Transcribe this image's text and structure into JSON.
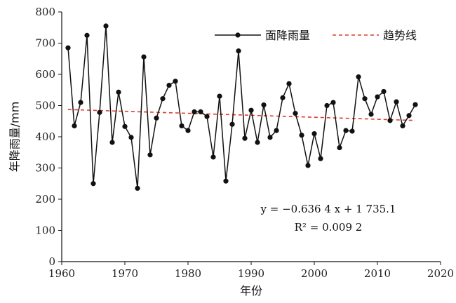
{
  "chart_data": {
    "type": "line",
    "xlabel": "年份",
    "ylabel": "年降雨量/mm",
    "xlim": [
      1960,
      2020
    ],
    "ylim": [
      0,
      800
    ],
    "xticks": [
      1960,
      1970,
      1980,
      1990,
      2000,
      2010,
      2020
    ],
    "yticks": [
      0,
      100,
      200,
      300,
      400,
      500,
      600,
      700,
      800
    ],
    "legend_position": "top-right",
    "grid": false,
    "series": [
      {
        "name": "面降雨量",
        "color": "#111111",
        "marker": "circle",
        "x": [
          1961,
          1962,
          1963,
          1964,
          1965,
          1966,
          1967,
          1968,
          1969,
          1970,
          1971,
          1972,
          1973,
          1974,
          1975,
          1976,
          1977,
          1978,
          1979,
          1980,
          1981,
          1982,
          1983,
          1984,
          1985,
          1986,
          1987,
          1988,
          1989,
          1990,
          1991,
          1992,
          1993,
          1994,
          1995,
          1996,
          1997,
          1998,
          1999,
          2000,
          2001,
          2002,
          2003,
          2004,
          2005,
          2006,
          2007,
          2008,
          2009,
          2010,
          2011,
          2012,
          2013,
          2014,
          2015,
          2016
        ],
        "y": [
          685,
          435,
          510,
          725,
          250,
          478,
          755,
          382,
          543,
          433,
          398,
          235,
          656,
          342,
          460,
          522,
          565,
          578,
          435,
          420,
          480,
          480,
          465,
          335,
          530,
          258,
          440,
          675,
          395,
          485,
          382,
          502,
          398,
          420,
          525,
          570,
          475,
          405,
          308,
          410,
          330,
          500,
          510,
          365,
          420,
          418,
          592,
          522,
          472,
          528,
          545,
          452,
          512,
          435,
          468,
          503
        ]
      },
      {
        "name": "趋势线",
        "color": "#e03a2f",
        "style": "dashed",
        "x": [
          1961,
          2016
        ],
        "y": [
          487.3,
          452.3
        ]
      }
    ],
    "annotations": [
      {
        "lines": [
          "y = −0.636 4 x + 1 735.1",
          "R² = 0.009 2"
        ]
      }
    ]
  }
}
